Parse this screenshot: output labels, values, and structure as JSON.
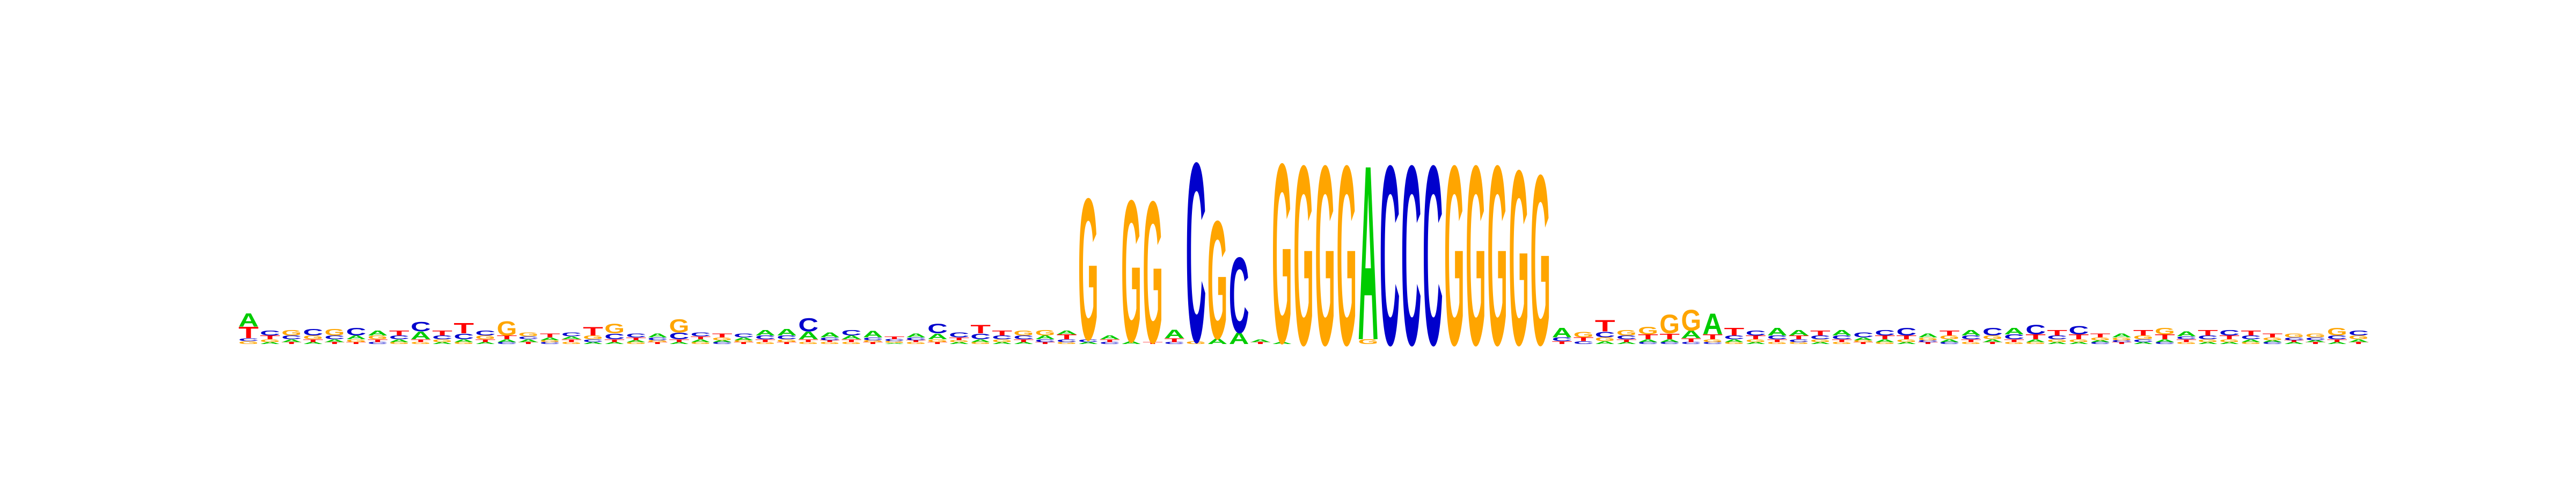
{
  "chart_data": {
    "type": "logo",
    "ylim": [
      0,
      2
    ],
    "colors": {
      "A": "#00cc00",
      "C": "#0000cc",
      "G": "#ffa500",
      "T": "#ff0000"
    },
    "positions": [
      [
        [
          "G",
          0.03
        ],
        [
          "C",
          0.03
        ],
        [
          "T",
          0.12
        ],
        [
          "A",
          0.14
        ]
      ],
      [
        [
          "A",
          0.02
        ],
        [
          "G",
          0.03
        ],
        [
          "T",
          0.04
        ],
        [
          "C",
          0.05
        ]
      ],
      [
        [
          "T",
          0.02
        ],
        [
          "A",
          0.03
        ],
        [
          "C",
          0.04
        ],
        [
          "G",
          0.06
        ]
      ],
      [
        [
          "A",
          0.02
        ],
        [
          "T",
          0.03
        ],
        [
          "G",
          0.04
        ],
        [
          "C",
          0.07
        ]
      ],
      [
        [
          "T",
          0.02
        ],
        [
          "A",
          0.03
        ],
        [
          "C",
          0.04
        ],
        [
          "G",
          0.07
        ]
      ],
      [
        [
          "T",
          0.02
        ],
        [
          "G",
          0.03
        ],
        [
          "A",
          0.04
        ],
        [
          "C",
          0.08
        ]
      ],
      [
        [
          "C",
          0.02
        ],
        [
          "T",
          0.03
        ],
        [
          "G",
          0.04
        ],
        [
          "A",
          0.05
        ]
      ],
      [
        [
          "G",
          0.02
        ],
        [
          "A",
          0.03
        ],
        [
          "C",
          0.04
        ],
        [
          "T",
          0.05
        ]
      ],
      [
        [
          "G",
          0.02
        ],
        [
          "T",
          0.03
        ],
        [
          "A",
          0.08
        ],
        [
          "C",
          0.1
        ]
      ],
      [
        [
          "A",
          0.02
        ],
        [
          "G",
          0.03
        ],
        [
          "C",
          0.04
        ],
        [
          "T",
          0.05
        ]
      ],
      [
        [
          "G",
          0.02
        ],
        [
          "A",
          0.03
        ],
        [
          "C",
          0.06
        ],
        [
          "T",
          0.11
        ]
      ],
      [
        [
          "A",
          0.02
        ],
        [
          "T",
          0.03
        ],
        [
          "G",
          0.04
        ],
        [
          "C",
          0.05
        ]
      ],
      [
        [
          "C",
          0.02
        ],
        [
          "A",
          0.03
        ],
        [
          "T",
          0.04
        ],
        [
          "G",
          0.15
        ]
      ],
      [
        [
          "T",
          0.02
        ],
        [
          "A",
          0.03
        ],
        [
          "C",
          0.03
        ],
        [
          "G",
          0.04
        ]
      ],
      [
        [
          "C",
          0.02
        ],
        [
          "G",
          0.02
        ],
        [
          "A",
          0.03
        ],
        [
          "T",
          0.04
        ]
      ],
      [
        [
          "G",
          0.02
        ],
        [
          "T",
          0.03
        ],
        [
          "A",
          0.03
        ],
        [
          "C",
          0.04
        ]
      ],
      [
        [
          "A",
          0.02
        ],
        [
          "C",
          0.03
        ],
        [
          "G",
          0.04
        ],
        [
          "T",
          0.09
        ]
      ],
      [
        [
          "A",
          0.02
        ],
        [
          "T",
          0.03
        ],
        [
          "C",
          0.06
        ],
        [
          "G",
          0.1
        ]
      ],
      [
        [
          "G",
          0.02
        ],
        [
          "A",
          0.02
        ],
        [
          "T",
          0.03
        ],
        [
          "C",
          0.04
        ]
      ],
      [
        [
          "T",
          0.02
        ],
        [
          "G",
          0.02
        ],
        [
          "C",
          0.03
        ],
        [
          "A",
          0.04
        ]
      ],
      [
        [
          "A",
          0.02
        ],
        [
          "T",
          0.03
        ],
        [
          "C",
          0.07
        ],
        [
          "G",
          0.14
        ]
      ],
      [
        [
          "G",
          0.02
        ],
        [
          "A",
          0.03
        ],
        [
          "T",
          0.03
        ],
        [
          "C",
          0.04
        ]
      ],
      [
        [
          "C",
          0.02
        ],
        [
          "A",
          0.02
        ],
        [
          "G",
          0.03
        ],
        [
          "T",
          0.04
        ]
      ],
      [
        [
          "T",
          0.02
        ],
        [
          "G",
          0.02
        ],
        [
          "A",
          0.03
        ],
        [
          "C",
          0.04
        ]
      ],
      [
        [
          "G",
          0.02
        ],
        [
          "T",
          0.03
        ],
        [
          "C",
          0.04
        ],
        [
          "A",
          0.06
        ]
      ],
      [
        [
          "T",
          0.02
        ],
        [
          "G",
          0.03
        ],
        [
          "C",
          0.04
        ],
        [
          "A",
          0.07
        ]
      ],
      [
        [
          "G",
          0.02
        ],
        [
          "T",
          0.03
        ],
        [
          "A",
          0.08
        ],
        [
          "C",
          0.14
        ]
      ],
      [
        [
          "G",
          0.02
        ],
        [
          "T",
          0.02
        ],
        [
          "C",
          0.03
        ],
        [
          "A",
          0.05
        ]
      ],
      [
        [
          "G",
          0.02
        ],
        [
          "T",
          0.03
        ],
        [
          "A",
          0.04
        ],
        [
          "C",
          0.06
        ]
      ],
      [
        [
          "T",
          0.02
        ],
        [
          "G",
          0.02
        ],
        [
          "C",
          0.03
        ],
        [
          "A",
          0.07
        ]
      ],
      [
        [
          "A",
          0.01
        ],
        [
          "G",
          0.02
        ],
        [
          "C",
          0.02
        ],
        [
          "T",
          0.03
        ]
      ],
      [
        [
          "G",
          0.02
        ],
        [
          "T",
          0.02
        ],
        [
          "C",
          0.03
        ],
        [
          "A",
          0.04
        ]
      ],
      [
        [
          "T",
          0.02
        ],
        [
          "G",
          0.03
        ],
        [
          "A",
          0.06
        ],
        [
          "C",
          0.1
        ]
      ],
      [
        [
          "A",
          0.02
        ],
        [
          "G",
          0.02
        ],
        [
          "T",
          0.03
        ],
        [
          "C",
          0.05
        ]
      ],
      [
        [
          "G",
          0.02
        ],
        [
          "A",
          0.03
        ],
        [
          "C",
          0.06
        ],
        [
          "T",
          0.09
        ]
      ],
      [
        [
          "A",
          0.02
        ],
        [
          "G",
          0.03
        ],
        [
          "C",
          0.04
        ],
        [
          "T",
          0.05
        ]
      ],
      [
        [
          "A",
          0.02
        ],
        [
          "T",
          0.03
        ],
        [
          "C",
          0.04
        ],
        [
          "G",
          0.05
        ]
      ],
      [
        [
          "T",
          0.02
        ],
        [
          "C",
          0.03
        ],
        [
          "A",
          0.04
        ],
        [
          "G",
          0.06
        ]
      ],
      [
        [
          "G",
          0.02
        ],
        [
          "C",
          0.03
        ],
        [
          "T",
          0.05
        ],
        [
          "A",
          0.04
        ]
      ],
      [
        [
          "A",
          0.02
        ],
        [
          "C",
          0.03
        ],
        [
          "G",
          1.5
        ]
      ],
      [
        [
          "C",
          0.02
        ],
        [
          "T",
          0.03
        ],
        [
          "A",
          0.04
        ]
      ],
      [
        [
          "A",
          0.03
        ],
        [
          "G",
          1.5
        ]
      ],
      [
        [
          "T",
          0.02
        ],
        [
          "G",
          1.5
        ]
      ],
      [
        [
          "C",
          0.02
        ],
        [
          "T",
          0.04
        ],
        [
          "A",
          0.09
        ]
      ],
      [
        [
          "G",
          0.03
        ],
        [
          "C",
          1.9
        ]
      ],
      [
        [
          "A",
          0.06
        ],
        [
          "G",
          1.25
        ]
      ],
      [
        [
          "A",
          0.12
        ],
        [
          "C",
          0.8
        ]
      ],
      [
        [
          "T",
          0.02
        ],
        [
          "A",
          0.03
        ]
      ],
      [
        [
          "A",
          0.02
        ],
        [
          "G",
          1.9
        ]
      ],
      [
        [
          "G",
          1.9
        ]
      ],
      [
        [
          "G",
          1.9
        ]
      ],
      [
        [
          "G",
          1.9
        ]
      ],
      [
        [
          "G",
          0.05
        ],
        [
          "A",
          1.85
        ]
      ],
      [
        [
          "C",
          1.9
        ]
      ],
      [
        [
          "C",
          1.9
        ]
      ],
      [
        [
          "C",
          1.9
        ]
      ],
      [
        [
          "G",
          1.9
        ]
      ],
      [
        [
          "G",
          1.9
        ]
      ],
      [
        [
          "G",
          1.9
        ]
      ],
      [
        [
          "G",
          1.85
        ]
      ],
      [
        [
          "G",
          1.8
        ]
      ],
      [
        [
          "T",
          0.03
        ],
        [
          "C",
          0.04
        ],
        [
          "A",
          0.1
        ]
      ],
      [
        [
          "C",
          0.03
        ],
        [
          "T",
          0.04
        ],
        [
          "G",
          0.06
        ]
      ],
      [
        [
          "A",
          0.03
        ],
        [
          "G",
          0.04
        ],
        [
          "C",
          0.06
        ],
        [
          "T",
          0.12
        ]
      ],
      [
        [
          "A",
          0.02
        ],
        [
          "T",
          0.03
        ],
        [
          "C",
          0.04
        ],
        [
          "G",
          0.06
        ]
      ],
      [
        [
          "C",
          0.02
        ],
        [
          "A",
          0.03
        ],
        [
          "T",
          0.05
        ],
        [
          "G",
          0.08
        ]
      ],
      [
        [
          "C",
          0.02
        ],
        [
          "A",
          0.03
        ],
        [
          "T",
          0.06
        ],
        [
          "G",
          0.2
        ]
      ],
      [
        [
          "C",
          0.02
        ],
        [
          "T",
          0.04
        ],
        [
          "A",
          0.08
        ],
        [
          "G",
          0.22
        ]
      ],
      [
        [
          "C",
          0.02
        ],
        [
          "G",
          0.03
        ],
        [
          "T",
          0.05
        ],
        [
          "A",
          0.22
        ]
      ],
      [
        [
          "G",
          0.02
        ],
        [
          "A",
          0.03
        ],
        [
          "C",
          0.04
        ],
        [
          "T",
          0.08
        ]
      ],
      [
        [
          "A",
          0.02
        ],
        [
          "G",
          0.03
        ],
        [
          "T",
          0.04
        ],
        [
          "C",
          0.05
        ]
      ],
      [
        [
          "G",
          0.02
        ],
        [
          "T",
          0.03
        ],
        [
          "C",
          0.04
        ],
        [
          "A",
          0.08
        ]
      ],
      [
        [
          "G",
          0.02
        ],
        [
          "C",
          0.03
        ],
        [
          "T",
          0.04
        ],
        [
          "A",
          0.06
        ]
      ],
      [
        [
          "A",
          0.02
        ],
        [
          "G",
          0.03
        ],
        [
          "C",
          0.04
        ],
        [
          "T",
          0.05
        ]
      ],
      [
        [
          "G",
          0.02
        ],
        [
          "T",
          0.03
        ],
        [
          "C",
          0.04
        ],
        [
          "A",
          0.06
        ]
      ],
      [
        [
          "T",
          0.02
        ],
        [
          "G",
          0.02
        ],
        [
          "A",
          0.03
        ],
        [
          "C",
          0.05
        ]
      ],
      [
        [
          "G",
          0.02
        ],
        [
          "A",
          0.03
        ],
        [
          "T",
          0.04
        ],
        [
          "C",
          0.06
        ]
      ],
      [
        [
          "A",
          0.02
        ],
        [
          "G",
          0.03
        ],
        [
          "T",
          0.04
        ],
        [
          "C",
          0.08
        ]
      ],
      [
        [
          "T",
          0.02
        ],
        [
          "C",
          0.02
        ],
        [
          "G",
          0.03
        ],
        [
          "A",
          0.04
        ]
      ],
      [
        [
          "C",
          0.02
        ],
        [
          "A",
          0.03
        ],
        [
          "G",
          0.04
        ],
        [
          "T",
          0.05
        ]
      ],
      [
        [
          "G",
          0.02
        ],
        [
          "T",
          0.03
        ],
        [
          "C",
          0.04
        ],
        [
          "A",
          0.06
        ]
      ],
      [
        [
          "T",
          0.02
        ],
        [
          "A",
          0.03
        ],
        [
          "G",
          0.04
        ],
        [
          "C",
          0.08
        ]
      ],
      [
        [
          "G",
          0.02
        ],
        [
          "T",
          0.03
        ],
        [
          "C",
          0.05
        ],
        [
          "A",
          0.07
        ]
      ],
      [
        [
          "G",
          0.02
        ],
        [
          "A",
          0.03
        ],
        [
          "T",
          0.05
        ],
        [
          "C",
          0.1
        ]
      ],
      [
        [
          "A",
          0.02
        ],
        [
          "G",
          0.03
        ],
        [
          "C",
          0.04
        ],
        [
          "T",
          0.06
        ]
      ],
      [
        [
          "A",
          0.02
        ],
        [
          "G",
          0.03
        ],
        [
          "T",
          0.05
        ],
        [
          "C",
          0.09
        ]
      ],
      [
        [
          "C",
          0.02
        ],
        [
          "A",
          0.02
        ],
        [
          "G",
          0.03
        ],
        [
          "T",
          0.04
        ]
      ],
      [
        [
          "T",
          0.02
        ],
        [
          "C",
          0.02
        ],
        [
          "G",
          0.03
        ],
        [
          "A",
          0.04
        ]
      ],
      [
        [
          "A",
          0.02
        ],
        [
          "C",
          0.03
        ],
        [
          "G",
          0.04
        ],
        [
          "T",
          0.06
        ]
      ],
      [
        [
          "C",
          0.02
        ],
        [
          "A",
          0.03
        ],
        [
          "T",
          0.05
        ],
        [
          "G",
          0.07
        ]
      ],
      [
        [
          "G",
          0.02
        ],
        [
          "T",
          0.03
        ],
        [
          "C",
          0.03
        ],
        [
          "A",
          0.05
        ]
      ],
      [
        [
          "A",
          0.02
        ],
        [
          "G",
          0.03
        ],
        [
          "C",
          0.04
        ],
        [
          "T",
          0.06
        ]
      ],
      [
        [
          "A",
          0.02
        ],
        [
          "G",
          0.03
        ],
        [
          "T",
          0.04
        ],
        [
          "C",
          0.06
        ]
      ],
      [
        [
          "G",
          0.02
        ],
        [
          "A",
          0.03
        ],
        [
          "C",
          0.04
        ],
        [
          "T",
          0.05
        ]
      ],
      [
        [
          "C",
          0.02
        ],
        [
          "A",
          0.02
        ],
        [
          "G",
          0.03
        ],
        [
          "T",
          0.04
        ]
      ],
      [
        [
          "A",
          0.02
        ],
        [
          "T",
          0.02
        ],
        [
          "C",
          0.03
        ],
        [
          "G",
          0.04
        ]
      ],
      [
        [
          "T",
          0.02
        ],
        [
          "A",
          0.02
        ],
        [
          "C",
          0.03
        ],
        [
          "G",
          0.04
        ]
      ],
      [
        [
          "A",
          0.02
        ],
        [
          "T",
          0.03
        ],
        [
          "C",
          0.04
        ],
        [
          "G",
          0.08
        ]
      ],
      [
        [
          "T",
          0.02
        ],
        [
          "A",
          0.03
        ],
        [
          "G",
          0.04
        ],
        [
          "C",
          0.05
        ]
      ]
    ]
  }
}
